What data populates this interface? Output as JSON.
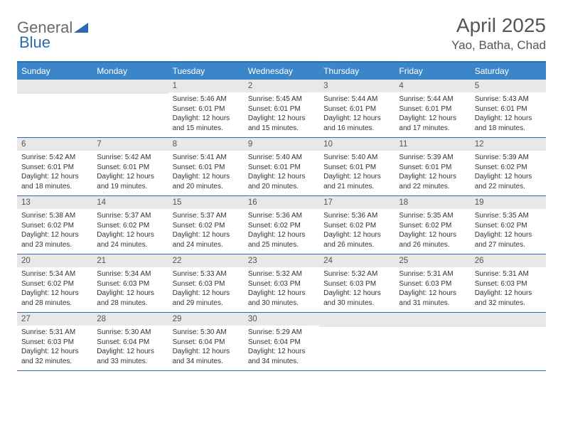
{
  "logo": {
    "part1": "General",
    "part2": "Blue"
  },
  "title": "April 2025",
  "location": "Yao, Batha, Chad",
  "colors": {
    "header_bg": "#3a86c8",
    "border": "#2a6bb0",
    "daynum_bg": "#e8e8e8",
    "text": "#333333",
    "title_text": "#555555"
  },
  "weekdays": [
    "Sunday",
    "Monday",
    "Tuesday",
    "Wednesday",
    "Thursday",
    "Friday",
    "Saturday"
  ],
  "weeks": [
    [
      null,
      null,
      {
        "n": "1",
        "sr": "Sunrise: 5:46 AM",
        "ss": "Sunset: 6:01 PM",
        "dl": "Daylight: 12 hours and 15 minutes."
      },
      {
        "n": "2",
        "sr": "Sunrise: 5:45 AM",
        "ss": "Sunset: 6:01 PM",
        "dl": "Daylight: 12 hours and 15 minutes."
      },
      {
        "n": "3",
        "sr": "Sunrise: 5:44 AM",
        "ss": "Sunset: 6:01 PM",
        "dl": "Daylight: 12 hours and 16 minutes."
      },
      {
        "n": "4",
        "sr": "Sunrise: 5:44 AM",
        "ss": "Sunset: 6:01 PM",
        "dl": "Daylight: 12 hours and 17 minutes."
      },
      {
        "n": "5",
        "sr": "Sunrise: 5:43 AM",
        "ss": "Sunset: 6:01 PM",
        "dl": "Daylight: 12 hours and 18 minutes."
      }
    ],
    [
      {
        "n": "6",
        "sr": "Sunrise: 5:42 AM",
        "ss": "Sunset: 6:01 PM",
        "dl": "Daylight: 12 hours and 18 minutes."
      },
      {
        "n": "7",
        "sr": "Sunrise: 5:42 AM",
        "ss": "Sunset: 6:01 PM",
        "dl": "Daylight: 12 hours and 19 minutes."
      },
      {
        "n": "8",
        "sr": "Sunrise: 5:41 AM",
        "ss": "Sunset: 6:01 PM",
        "dl": "Daylight: 12 hours and 20 minutes."
      },
      {
        "n": "9",
        "sr": "Sunrise: 5:40 AM",
        "ss": "Sunset: 6:01 PM",
        "dl": "Daylight: 12 hours and 20 minutes."
      },
      {
        "n": "10",
        "sr": "Sunrise: 5:40 AM",
        "ss": "Sunset: 6:01 PM",
        "dl": "Daylight: 12 hours and 21 minutes."
      },
      {
        "n": "11",
        "sr": "Sunrise: 5:39 AM",
        "ss": "Sunset: 6:01 PM",
        "dl": "Daylight: 12 hours and 22 minutes."
      },
      {
        "n": "12",
        "sr": "Sunrise: 5:39 AM",
        "ss": "Sunset: 6:02 PM",
        "dl": "Daylight: 12 hours and 22 minutes."
      }
    ],
    [
      {
        "n": "13",
        "sr": "Sunrise: 5:38 AM",
        "ss": "Sunset: 6:02 PM",
        "dl": "Daylight: 12 hours and 23 minutes."
      },
      {
        "n": "14",
        "sr": "Sunrise: 5:37 AM",
        "ss": "Sunset: 6:02 PM",
        "dl": "Daylight: 12 hours and 24 minutes."
      },
      {
        "n": "15",
        "sr": "Sunrise: 5:37 AM",
        "ss": "Sunset: 6:02 PM",
        "dl": "Daylight: 12 hours and 24 minutes."
      },
      {
        "n": "16",
        "sr": "Sunrise: 5:36 AM",
        "ss": "Sunset: 6:02 PM",
        "dl": "Daylight: 12 hours and 25 minutes."
      },
      {
        "n": "17",
        "sr": "Sunrise: 5:36 AM",
        "ss": "Sunset: 6:02 PM",
        "dl": "Daylight: 12 hours and 26 minutes."
      },
      {
        "n": "18",
        "sr": "Sunrise: 5:35 AM",
        "ss": "Sunset: 6:02 PM",
        "dl": "Daylight: 12 hours and 26 minutes."
      },
      {
        "n": "19",
        "sr": "Sunrise: 5:35 AM",
        "ss": "Sunset: 6:02 PM",
        "dl": "Daylight: 12 hours and 27 minutes."
      }
    ],
    [
      {
        "n": "20",
        "sr": "Sunrise: 5:34 AM",
        "ss": "Sunset: 6:02 PM",
        "dl": "Daylight: 12 hours and 28 minutes."
      },
      {
        "n": "21",
        "sr": "Sunrise: 5:34 AM",
        "ss": "Sunset: 6:03 PM",
        "dl": "Daylight: 12 hours and 28 minutes."
      },
      {
        "n": "22",
        "sr": "Sunrise: 5:33 AM",
        "ss": "Sunset: 6:03 PM",
        "dl": "Daylight: 12 hours and 29 minutes."
      },
      {
        "n": "23",
        "sr": "Sunrise: 5:32 AM",
        "ss": "Sunset: 6:03 PM",
        "dl": "Daylight: 12 hours and 30 minutes."
      },
      {
        "n": "24",
        "sr": "Sunrise: 5:32 AM",
        "ss": "Sunset: 6:03 PM",
        "dl": "Daylight: 12 hours and 30 minutes."
      },
      {
        "n": "25",
        "sr": "Sunrise: 5:31 AM",
        "ss": "Sunset: 6:03 PM",
        "dl": "Daylight: 12 hours and 31 minutes."
      },
      {
        "n": "26",
        "sr": "Sunrise: 5:31 AM",
        "ss": "Sunset: 6:03 PM",
        "dl": "Daylight: 12 hours and 32 minutes."
      }
    ],
    [
      {
        "n": "27",
        "sr": "Sunrise: 5:31 AM",
        "ss": "Sunset: 6:03 PM",
        "dl": "Daylight: 12 hours and 32 minutes."
      },
      {
        "n": "28",
        "sr": "Sunrise: 5:30 AM",
        "ss": "Sunset: 6:04 PM",
        "dl": "Daylight: 12 hours and 33 minutes."
      },
      {
        "n": "29",
        "sr": "Sunrise: 5:30 AM",
        "ss": "Sunset: 6:04 PM",
        "dl": "Daylight: 12 hours and 34 minutes."
      },
      {
        "n": "30",
        "sr": "Sunrise: 5:29 AM",
        "ss": "Sunset: 6:04 PM",
        "dl": "Daylight: 12 hours and 34 minutes."
      },
      null,
      null,
      null
    ]
  ]
}
